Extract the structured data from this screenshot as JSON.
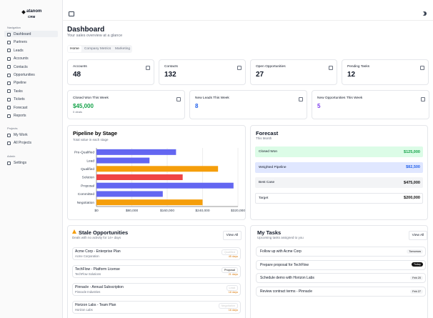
{
  "sidebar": {
    "brand": "atanom",
    "sub": "CRM",
    "sections": [
      {
        "title": "Navigation",
        "items": [
          "Dashboard",
          "Partners",
          "Leads",
          "Accounts",
          "Contacts",
          "Opportunities",
          "Pipeline",
          "Tasks",
          "Tickets",
          "Forecast",
          "Reports"
        ]
      },
      {
        "title": "Projects",
        "items": [
          "My Work",
          "All Projects"
        ]
      },
      {
        "title": "Admin",
        "items": [
          "Settings"
        ]
      }
    ]
  },
  "header": {
    "title": "Dashboard",
    "subtitle": "Your sales overview at a glance"
  },
  "tabs": [
    "Home",
    "Company Metrics",
    "Marketing"
  ],
  "stats": [
    {
      "label": "Accounts",
      "value": "48"
    },
    {
      "label": "Contacts",
      "value": "132"
    },
    {
      "label": "Open Opportunities",
      "value": "27"
    },
    {
      "label": "Pending Tasks",
      "value": "12"
    }
  ],
  "weekly": [
    {
      "label": "Closed Won This Week",
      "value": "$45,000",
      "note": "0 deals"
    },
    {
      "label": "New Leads This Week",
      "value": "8"
    },
    {
      "label": "New Opportunities This Week",
      "value": "5"
    }
  ],
  "chart_data": {
    "type": "bar",
    "orientation": "horizontal",
    "title": "Pipeline by Stage",
    "subtitle": "Total value in each stage",
    "categories": [
      "Pre-Qualified",
      "Lead",
      "Qualified",
      "Solution",
      "Proposal",
      "Committed",
      "Negotiation"
    ],
    "values": [
      180000,
      120000,
      275000,
      195000,
      310000,
      150000,
      240000
    ],
    "colors": [
      "#6366f1",
      "#6366f1",
      "#f59e0b",
      "#ef4444",
      "#6366f1",
      "#6366f1",
      "#f59e0b"
    ],
    "xlim": [
      0,
      320000
    ],
    "xticks": [
      {
        "value": 0,
        "label": "$0"
      },
      {
        "value": 80000,
        "label": "$80,000"
      },
      {
        "value": 160000,
        "label": "$160,000"
      },
      {
        "value": 240000,
        "label": "$240,000"
      },
      {
        "value": 320000,
        "label": "$320,000"
      }
    ],
    "grid": true
  },
  "forecast": {
    "title": "Forecast",
    "subtitle": "This Month",
    "rows": [
      {
        "label": "Closed Won",
        "value": "$125,000"
      },
      {
        "label": "Weighted Pipeline",
        "value": "$82,500"
      },
      {
        "label": "Best Case",
        "value": "$475,000"
      },
      {
        "label": "Target",
        "value": "$200,000"
      }
    ]
  },
  "stale": {
    "title": "Stale Opportunities",
    "subtitle": "Deals with no activity for 14+ days",
    "button": "View All",
    "items": [
      {
        "name": "Acme Corp - Enterprise Plan",
        "company": "Acme Corporation",
        "stage": "Qualified",
        "age": "45 days"
      },
      {
        "name": "TechFlow - Platform License",
        "company": "TechFlow Solutions",
        "stage": "Proposal",
        "age": "21 days"
      },
      {
        "name": "Pinnacle - Annual Subscription",
        "company": "Pinnacle Industries",
        "stage": "Lead",
        "age": "18 days"
      },
      {
        "name": "Horizon Labs - Team Plan",
        "company": "Horizon Labs",
        "stage": "Negotiation",
        "age": "16 days"
      }
    ]
  },
  "tasks": {
    "title": "My Tasks",
    "subtitle": "Upcoming tasks assigned to you",
    "button": "View All",
    "items": [
      {
        "name": "Follow up with Acme Corp",
        "due": "Tomorrow"
      },
      {
        "name": "Prepare proposal for TechFlow",
        "due": "Today"
      },
      {
        "name": "Schedule demo with Horizon Labs",
        "due": "Feb 20"
      },
      {
        "name": "Review contract terms - Pinnacle",
        "due": "Feb 27"
      }
    ]
  }
}
